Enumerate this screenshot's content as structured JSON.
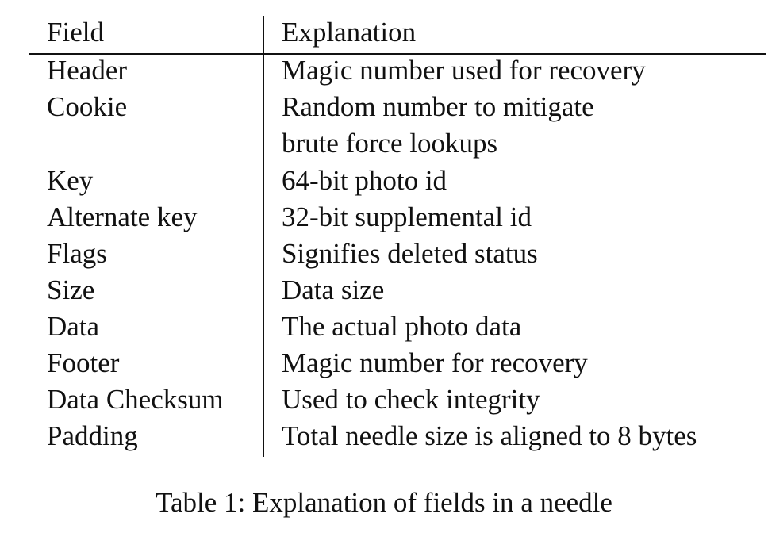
{
  "table": {
    "headers": {
      "field": "Field",
      "explanation": "Explanation"
    },
    "rows": [
      {
        "field": "Header",
        "explanation": [
          "Magic number used for recovery"
        ]
      },
      {
        "field": "Cookie",
        "explanation": [
          "Random number to mitigate",
          "brute force lookups"
        ]
      },
      {
        "field": "Key",
        "explanation": [
          "64-bit photo id"
        ]
      },
      {
        "field": "Alternate key",
        "explanation": [
          "32-bit supplemental id"
        ]
      },
      {
        "field": "Flags",
        "explanation": [
          "Signifies deleted status"
        ]
      },
      {
        "field": "Size",
        "explanation": [
          "Data size"
        ]
      },
      {
        "field": "Data",
        "explanation": [
          "The actual photo data"
        ]
      },
      {
        "field": "Footer",
        "explanation": [
          "Magic number for recovery"
        ]
      },
      {
        "field": "Data Checksum",
        "explanation": [
          "Used to check integrity"
        ]
      },
      {
        "field": "Padding",
        "explanation": [
          "Total needle size is aligned to 8 bytes"
        ]
      }
    ]
  },
  "caption": "Table 1: Explanation of fields in a needle"
}
